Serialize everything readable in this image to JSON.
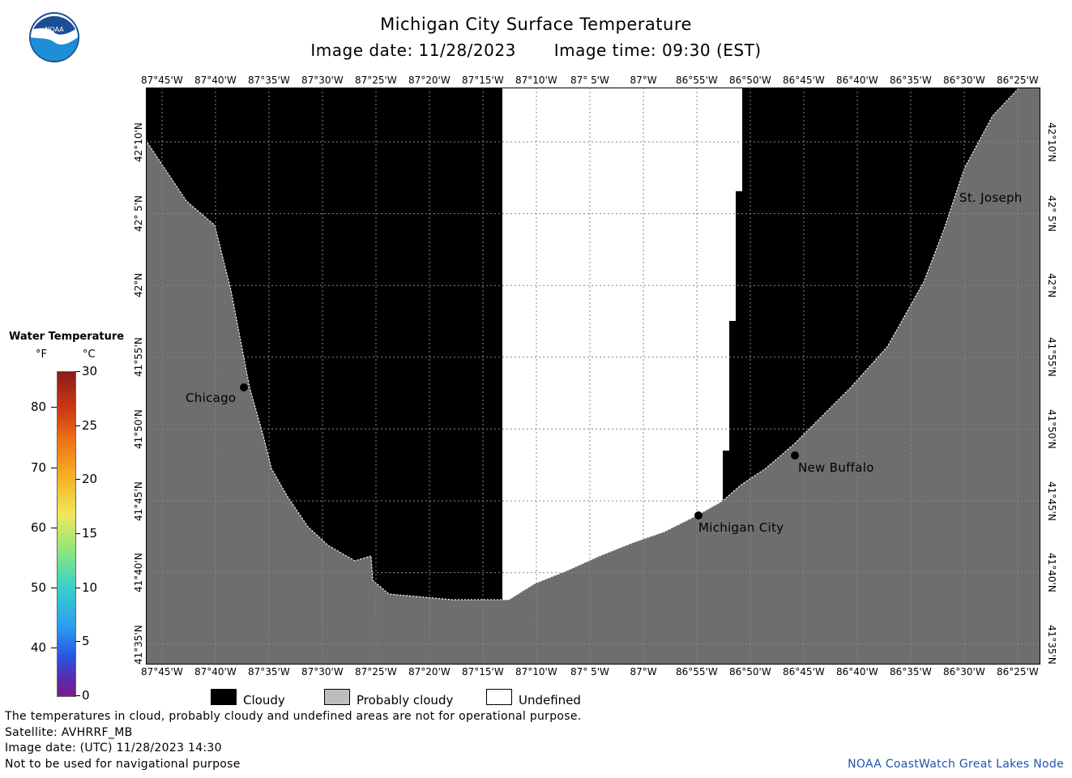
{
  "header": {
    "title": "Michigan City Surface Temperature",
    "image_date": "Image date: 11/28/2023",
    "image_time": "Image time: 09:30 (EST)"
  },
  "axes": {
    "lon_labels": [
      "87°45'W",
      "87°40'W",
      "87°35'W",
      "87°30'W",
      "87°25'W",
      "87°20'W",
      "87°15'W",
      "87°10'W",
      "87° 5'W",
      "87°W",
      "86°55'W",
      "86°50'W",
      "86°45'W",
      "86°40'W",
      "86°35'W",
      "86°30'W",
      "86°25'W"
    ],
    "lat_labels": [
      "42°10'N",
      "42° 5'N",
      "42°N",
      "41°55'N",
      "41°50'N",
      "41°45'N",
      "41°40'N",
      "41°35'N"
    ]
  },
  "places": {
    "chicago": "Chicago",
    "michigan_city": "Michigan City",
    "new_buffalo": "New Buffalo",
    "st_joseph": "St. Joseph"
  },
  "scale": {
    "title": "Water Temperature",
    "unit_f": "°F",
    "unit_c": "°C",
    "f_labels": [
      "80",
      "70",
      "60",
      "50",
      "40"
    ],
    "c_labels": [
      "30",
      "25",
      "20",
      "15",
      "10",
      "5",
      "0"
    ]
  },
  "legend": {
    "cloudy": "Cloudy",
    "probably_cloudy": "Probably cloudy",
    "undefined": "Undefined"
  },
  "notes": {
    "line1": "The temperatures in cloud, probably cloudy and undefined areas are not for operational purpose.",
    "line2": "Satellite: AVHRRF_MB",
    "line3": "Image date: (UTC) 11/28/2023  14:30",
    "line4": "Not to be used for navigational purpose"
  },
  "credit": "NOAA CoastWatch Great Lakes Node",
  "colors": {
    "cloudy": "#000000",
    "probably_cloudy": "#6e6e6e",
    "undefined": "#ffffff",
    "credit_text": "#2255aa",
    "logo_blue": "#1e8fd6",
    "logo_dark": "#1a4f96"
  }
}
